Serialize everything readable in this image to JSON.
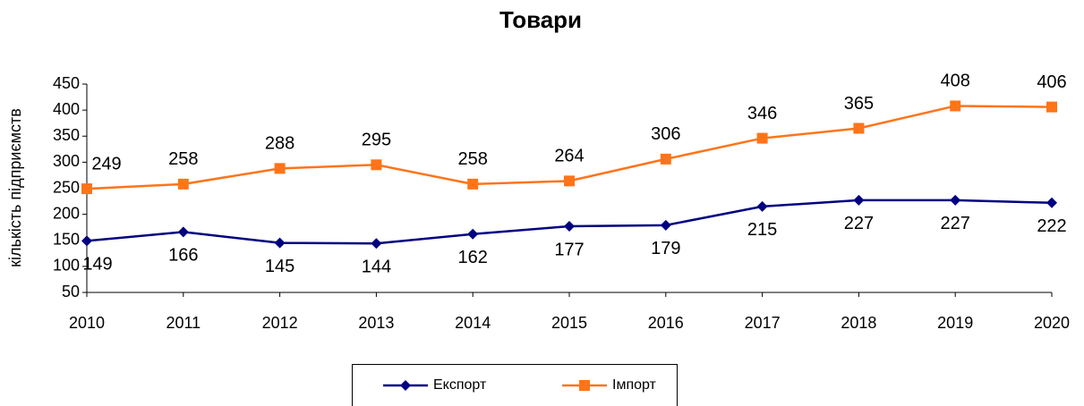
{
  "chart_data": {
    "type": "line",
    "title": "Товари",
    "y_label": "кількість підприємств",
    "categories": [
      "2010",
      "2011",
      "2012",
      "2013",
      "2014",
      "2015",
      "2016",
      "2017",
      "2018",
      "2019",
      "2020"
    ],
    "series": [
      {
        "name": "Експорт",
        "color": "#000080",
        "marker": "diamond",
        "values": [
          149,
          166,
          145,
          144,
          162,
          177,
          179,
          215,
          227,
          227,
          222
        ]
      },
      {
        "name": "Імпорт",
        "color": "#ff7418",
        "marker": "square",
        "values": [
          249,
          258,
          288,
          295,
          258,
          264,
          306,
          346,
          365,
          408,
          406
        ]
      }
    ],
    "ylim": [
      50,
      450
    ],
    "yticks": [
      50,
      100,
      150,
      200,
      250,
      300,
      350,
      400,
      450
    ],
    "grid": false,
    "legend_position": "bottom",
    "data_labels": true
  }
}
